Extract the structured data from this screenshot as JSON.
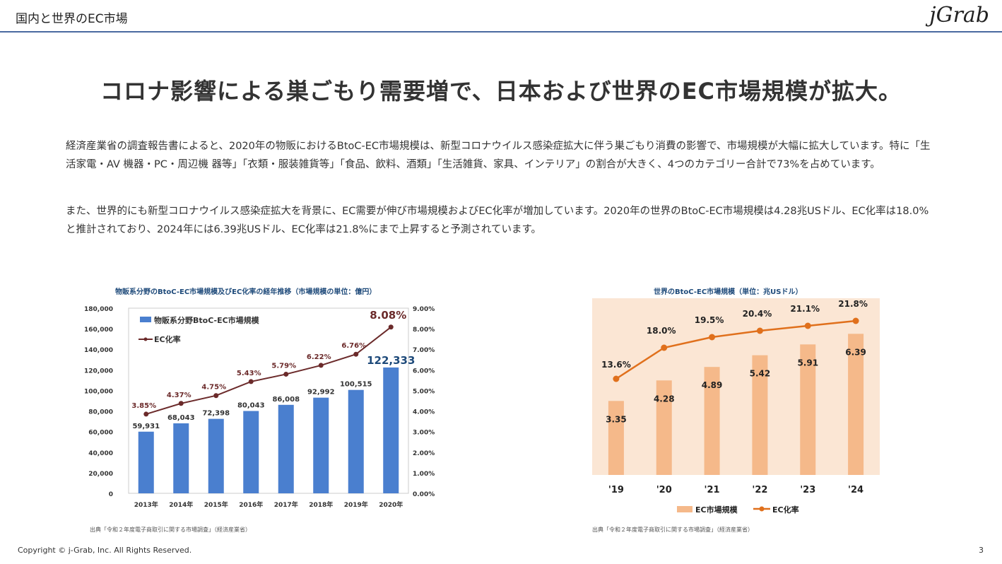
{
  "header": {
    "section": "国内と世界のEC市場",
    "logo": "jGrab"
  },
  "headline": "コロナ影響による巣ごもり需要増で、日本および世界のEC市場規模が拡大。",
  "paragraphs": [
    "経済産業省の調査報告書によると、2020年の物販におけるBtoC-EC市場規模は、新型コロナウイルス感染症拡大に伴う巣ごもり消費の影響で、市場規模が大幅に拡大しています。特に「生活家電・AV 機器・PC・周辺機 器等」「衣類・服装雑貨等」「食品、飲料、酒類」「生活雑貨、家具、インテリア」の割合が大きく、4つのカテゴリー合計で73%を占めています。",
    "また、世界的にも新型コロナウイルス感染症拡大を背景に、EC需要が伸び市場規模およびEC化率が増加しています。2020年の世界のBtoC-EC市場規模は4.28兆USドル、EC化率は18.0%と推計されており、2024年には6.39兆USドル、EC化率は21.8%にまで上昇すると予測されています。"
  ],
  "chart_data": [
    {
      "type": "bar+line",
      "title": "物販系分野のBtoC-EC市場規模及びEC化率の経年推移（市場規模の単位：億円）",
      "categories": [
        "2013年",
        "2014年",
        "2015年",
        "2016年",
        "2017年",
        "2018年",
        "2019年",
        "2020年"
      ],
      "series": [
        {
          "name": "物販系分野BtoC-EC市場規模",
          "type": "bar",
          "axis": "left",
          "color": "#4a7fcf",
          "values": [
            59931,
            68043,
            72398,
            80043,
            86008,
            92992,
            100515,
            122333
          ],
          "labels": [
            "59,931",
            "68,043",
            "72,398",
            "80,043",
            "86,008",
            "92,992",
            "100,515",
            "122,333"
          ]
        },
        {
          "name": "EC化率",
          "type": "line",
          "axis": "right",
          "color": "#6b2a2a",
          "values": [
            3.85,
            4.37,
            4.75,
            5.43,
            5.79,
            6.22,
            6.76,
            8.08
          ],
          "labels": [
            "3.85%",
            "4.37%",
            "4.75%",
            "5.43%",
            "5.79%",
            "6.22%",
            "6.76%",
            "8.08%"
          ]
        }
      ],
      "ylim": [
        0,
        180000
      ],
      "yticks": [
        "0",
        "20,000",
        "40,000",
        "60,000",
        "80,000",
        "100,000",
        "120,000",
        "140,000",
        "160,000",
        "180,000"
      ],
      "y2lim": [
        0,
        9
      ],
      "y2ticks": [
        "0.00%",
        "1.00%",
        "2.00%",
        "3.00%",
        "4.00%",
        "5.00%",
        "6.00%",
        "7.00%",
        "8.00%",
        "9.00%"
      ],
      "legend": "top-left",
      "source": "出典「令和２年度電子商取引に関する市場調査」（経済産業省）"
    },
    {
      "type": "bar+line",
      "title": "世界のBtoC-EC市場規模（単位：兆USドル）",
      "categories": [
        "'19",
        "'20",
        "'21",
        "'22",
        "'23",
        "'24"
      ],
      "series": [
        {
          "name": "EC市場規模",
          "type": "bar",
          "color": "#f5b98a",
          "values": [
            3.35,
            4.28,
            4.89,
            5.42,
            5.91,
            6.39
          ],
          "labels": [
            "3.35",
            "4.28",
            "4.89",
            "5.42",
            "5.91",
            "6.39"
          ]
        },
        {
          "name": "EC化率",
          "type": "line",
          "color": "#e0701c",
          "values": [
            13.6,
            18.0,
            19.5,
            20.4,
            21.1,
            21.8
          ],
          "labels": [
            "13.6%",
            "18.0%",
            "19.5%",
            "20.4%",
            "21.1%",
            "21.8%"
          ]
        }
      ],
      "background": "#fbe6d4",
      "legend": "bottom",
      "source": "出典「令和２年度電子商取引に関する市場調査」（経済産業省）"
    }
  ],
  "footer": {
    "copyright": "Copyright © j-Grab, Inc. All Rights Reserved.",
    "page": "3"
  }
}
